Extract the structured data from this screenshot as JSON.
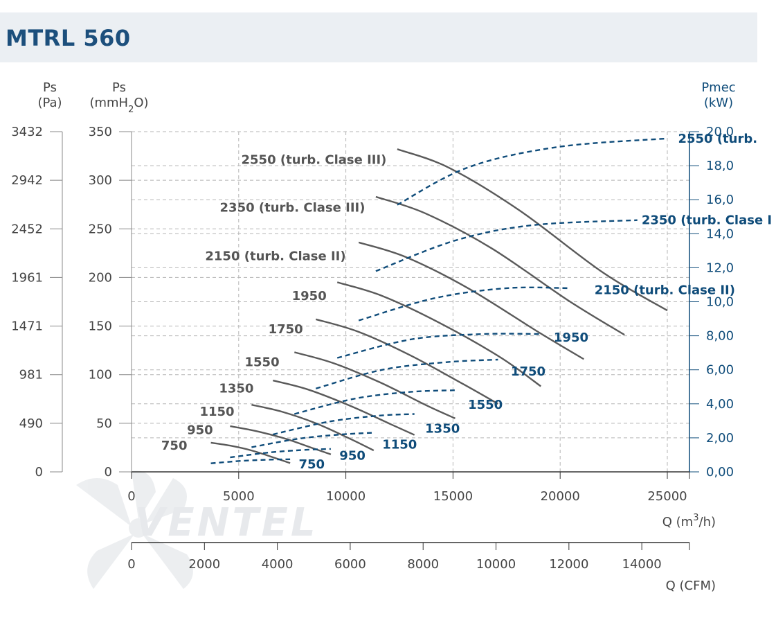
{
  "header": {
    "title": "MTRL 560"
  },
  "logo": {
    "text": "VENTEL"
  },
  "chart_data": {
    "type": "line",
    "title": "MTRL 560",
    "axes": {
      "left_pa": {
        "title_line1": "Ps",
        "title_line2": "(Pa)",
        "ticks": [
          "0",
          "490",
          "981",
          "1471",
          "1961",
          "2452",
          "2942",
          "3432"
        ]
      },
      "left_mmh2o": {
        "title_line1": "Ps",
        "title_line2_a": "(mmH",
        "title_line2_sub": "2",
        "title_line2_b": "O)",
        "range": [
          0,
          350
        ],
        "ticks": [
          "0",
          "50",
          "100",
          "150",
          "200",
          "250",
          "300",
          "350"
        ]
      },
      "right_pmec": {
        "title_line1": "Pmec",
        "title_line2": "(kW)",
        "range": [
          0,
          20
        ],
        "ticks": [
          "0,00",
          "2,00",
          "4,00",
          "6,00",
          "8,00",
          "10,0",
          "12,0",
          "14,0",
          "16,0",
          "18,0",
          "20,0"
        ]
      },
      "x_m3h": {
        "label_a": "Q (m",
        "label_sup": "3",
        "label_b": "/h)",
        "range": [
          0,
          25000
        ],
        "ticks": [
          "0",
          "5000",
          "10000",
          "15000",
          "20000",
          "25000"
        ]
      },
      "x_cfm": {
        "label": "Q (CFM)",
        "range": [
          0,
          14700
        ],
        "ticks": [
          "0",
          "2000",
          "4000",
          "6000",
          "8000",
          "10000",
          "12000",
          "14000"
        ]
      }
    },
    "pressure_curves": [
      {
        "name": "750",
        "points": [
          [
            3700,
            30
          ],
          [
            4600,
            27
          ],
          [
            5600,
            22
          ],
          [
            6600,
            15
          ],
          [
            7400,
            9
          ]
        ]
      },
      {
        "name": "950",
        "points": [
          [
            4600,
            47
          ],
          [
            5800,
            42
          ],
          [
            7200,
            34
          ],
          [
            8500,
            24
          ],
          [
            9300,
            18
          ]
        ]
      },
      {
        "name": "1150",
        "points": [
          [
            5600,
            69
          ],
          [
            7000,
            62
          ],
          [
            8600,
            50
          ],
          [
            10200,
            34
          ],
          [
            11300,
            22
          ]
        ]
      },
      {
        "name": "1350",
        "points": [
          [
            6600,
            94
          ],
          [
            8200,
            85
          ],
          [
            10200,
            68
          ],
          [
            12100,
            49
          ],
          [
            13200,
            38
          ]
        ]
      },
      {
        "name": "1550",
        "points": [
          [
            7600,
            123
          ],
          [
            9400,
            112
          ],
          [
            11600,
            92
          ],
          [
            13800,
            68
          ],
          [
            15100,
            55
          ]
        ]
      },
      {
        "name": "1750",
        "points": [
          [
            8600,
            157
          ],
          [
            10600,
            144
          ],
          [
            13000,
            120
          ],
          [
            15500,
            90
          ],
          [
            17100,
            70
          ]
        ]
      },
      {
        "name": "1950",
        "points": [
          [
            9600,
            195
          ],
          [
            11700,
            181
          ],
          [
            14400,
            153
          ],
          [
            17200,
            118
          ],
          [
            19100,
            88
          ]
        ]
      },
      {
        "name": "2150 (turb. Clase II)",
        "points": [
          [
            10600,
            236
          ],
          [
            12800,
            221
          ],
          [
            15700,
            189
          ],
          [
            18900,
            145
          ],
          [
            21100,
            116
          ]
        ]
      },
      {
        "name": "2350 (turb. Clase III)",
        "points": [
          [
            11400,
            283
          ],
          [
            13700,
            266
          ],
          [
            16800,
            230
          ],
          [
            20400,
            176
          ],
          [
            23000,
            141
          ]
        ]
      },
      {
        "name": "2550 (turb. Clase III)",
        "points": [
          [
            12400,
            332
          ],
          [
            14800,
            313
          ],
          [
            18100,
            269
          ],
          [
            22000,
            205
          ],
          [
            25000,
            166
          ]
        ]
      }
    ],
    "power_curves": [
      {
        "name": "750",
        "points": [
          [
            3700,
            0.5
          ],
          [
            5200,
            0.65
          ],
          [
            6500,
            0.72
          ],
          [
            7400,
            0.74
          ]
        ]
      },
      {
        "name": "950",
        "points": [
          [
            4600,
            0.85
          ],
          [
            6500,
            1.15
          ],
          [
            8200,
            1.3
          ],
          [
            9300,
            1.35
          ]
        ]
      },
      {
        "name": "1150",
        "points": [
          [
            5600,
            1.45
          ],
          [
            7800,
            1.95
          ],
          [
            9800,
            2.2
          ],
          [
            11300,
            2.3
          ]
        ]
      },
      {
        "name": "1350",
        "points": [
          [
            6600,
            2.2
          ],
          [
            9200,
            2.95
          ],
          [
            11500,
            3.3
          ],
          [
            13200,
            3.4
          ]
        ]
      },
      {
        "name": "1550",
        "points": [
          [
            7600,
            3.4
          ],
          [
            10400,
            4.3
          ],
          [
            13000,
            4.7
          ],
          [
            15100,
            4.8
          ]
        ]
      },
      {
        "name": "1750",
        "points": [
          [
            8600,
            4.9
          ],
          [
            11700,
            6.0
          ],
          [
            14700,
            6.45
          ],
          [
            17100,
            6.6
          ]
        ]
      },
      {
        "name": "1950",
        "points": [
          [
            9600,
            6.7
          ],
          [
            13100,
            7.8
          ],
          [
            16400,
            8.1
          ],
          [
            19100,
            8.1
          ]
        ]
      },
      {
        "name": "2150 (turb. Clase II)",
        "points": [
          [
            10600,
            8.9
          ],
          [
            14100,
            10.2
          ],
          [
            17500,
            10.8
          ],
          [
            20400,
            10.8
          ]
        ]
      },
      {
        "name": "2350 (turb. Clase I",
        "points": [
          [
            11400,
            11.8
          ],
          [
            15100,
            13.6
          ],
          [
            18700,
            14.5
          ],
          [
            23600,
            14.8
          ]
        ]
      },
      {
        "name": "2550 (turb.",
        "points": [
          [
            12400,
            15.7
          ],
          [
            15700,
            17.9
          ],
          [
            19900,
            19.1
          ],
          [
            25000,
            19.6
          ]
        ]
      }
    ],
    "pressure_labels": [
      {
        "text": "750",
        "x": 2600,
        "y": 27
      },
      {
        "text": "950",
        "x": 3800,
        "y": 43
      },
      {
        "text": "1150",
        "x": 4800,
        "y": 62
      },
      {
        "text": "1350",
        "x": 5700,
        "y": 86
      },
      {
        "text": "1550",
        "x": 6900,
        "y": 113
      },
      {
        "text": "1750",
        "x": 8000,
        "y": 147
      },
      {
        "text": "1950",
        "x": 9100,
        "y": 181
      },
      {
        "text": "2150 (turb. Clase II)",
        "x": 10000,
        "y": 222
      },
      {
        "text": "2350 (turb. Clase III)",
        "x": 10900,
        "y": 272
      },
      {
        "text": "2550 (turb. Clase III)",
        "x": 11900,
        "y": 321
      }
    ],
    "power_labels": [
      {
        "text": "750",
        "x": 7800,
        "y": 0.45
      },
      {
        "text": "950",
        "x": 9700,
        "y": 0.95
      },
      {
        "text": "1150",
        "x": 11700,
        "y": 1.6
      },
      {
        "text": "1350",
        "x": 13700,
        "y": 2.55
      },
      {
        "text": "1550",
        "x": 15700,
        "y": 3.95
      },
      {
        "text": "1750",
        "x": 17700,
        "y": 5.9
      },
      {
        "text": "1950",
        "x": 19700,
        "y": 7.9
      },
      {
        "text": "2150 (turb. Clase II)",
        "x": 21600,
        "y": 10.7
      },
      {
        "text": "2350 (turb. Clase I",
        "x": 23800,
        "y": 14.8
      },
      {
        "text": "2550 (turb.",
        "x": 25500,
        "y": 19.6
      }
    ],
    "grid": true,
    "colors": {
      "pressure": "#5a5a5a",
      "power": "#0f4c7a",
      "grid": "#b5b5b5",
      "header": "#ebeff3",
      "title": "#1c4f7c"
    }
  }
}
